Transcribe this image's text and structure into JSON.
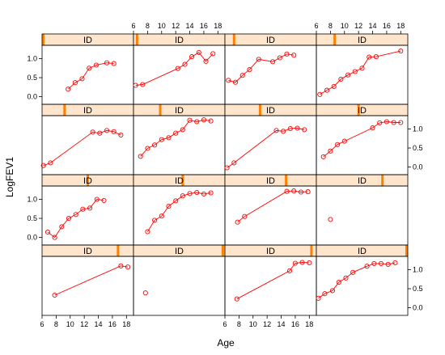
{
  "chart_data": {
    "type": "line",
    "xlabel": "Age",
    "ylabel": "LogFEV1",
    "strip_label": "ID",
    "xlim": [
      6,
      19
    ],
    "ylim": [
      -0.2,
      1.35
    ],
    "xticks": [
      6,
      8,
      10,
      12,
      14,
      16,
      18
    ],
    "yticks": [
      0.0,
      0.5,
      1.0
    ],
    "ytick_labels": [
      "0.0",
      "0.5",
      "1.0"
    ],
    "colors": {
      "line": "#ff0000",
      "strip_bg": "#ffe5cc",
      "strip_marker": "#ff8000",
      "frame": "#000000"
    },
    "layout": {
      "columns": 4,
      "rows": 4,
      "order": "bottom-to-top"
    },
    "panels": [
      {
        "id_marker": 16.8,
        "points": [
          [
            7.8,
            0.33
          ],
          [
            17.2,
            1.1
          ],
          [
            18.2,
            1.07
          ]
        ]
      },
      {
        "id_marker": 18.7,
        "points": [
          [
            7.7,
            0.39
          ]
        ]
      },
      {
        "id_marker": 18.3,
        "points": [
          [
            7.7,
            0.23
          ],
          [
            15.2,
            0.97
          ],
          [
            16.0,
            1.17
          ],
          [
            17.0,
            1.19
          ],
          [
            18.0,
            1.18
          ]
        ]
      },
      {
        "id_marker": 18.9,
        "points": [
          [
            6.3,
            0.25
          ],
          [
            7.2,
            0.37
          ],
          [
            8.3,
            0.45
          ],
          [
            9.2,
            0.67
          ],
          [
            10.2,
            0.78
          ],
          [
            11.2,
            0.93
          ],
          [
            13.2,
            1.09
          ],
          [
            14.2,
            1.16
          ],
          [
            15.2,
            1.16
          ],
          [
            16.2,
            1.14
          ],
          [
            17.2,
            1.18
          ]
        ]
      },
      {
        "id_marker": 12.5,
        "points": [
          [
            6.8,
            0.14
          ],
          [
            7.8,
            0.0
          ],
          [
            8.8,
            0.28
          ],
          [
            9.8,
            0.5
          ],
          [
            10.8,
            0.6
          ],
          [
            11.8,
            0.74
          ],
          [
            12.8,
            0.77
          ],
          [
            13.8,
            1.0
          ],
          [
            14.8,
            0.97
          ]
        ]
      },
      {
        "id_marker": 13.0,
        "points": [
          [
            8.0,
            0.15
          ],
          [
            9.0,
            0.45
          ],
          [
            10.0,
            0.56
          ],
          [
            11.0,
            0.82
          ],
          [
            12.0,
            0.96
          ],
          [
            13.0,
            1.09
          ],
          [
            14.0,
            1.15
          ],
          [
            15.0,
            1.18
          ],
          [
            16.0,
            1.14
          ],
          [
            17.0,
            1.17
          ]
        ]
      },
      {
        "id_marker": 14.7,
        "points": [
          [
            7.8,
            0.4
          ],
          [
            8.8,
            0.55
          ],
          [
            14.8,
            1.21
          ],
          [
            15.8,
            1.22
          ],
          [
            16.8,
            1.19
          ],
          [
            17.8,
            1.2
          ]
        ]
      },
      {
        "id_marker": 15.4,
        "points": [
          [
            8.0,
            0.47
          ]
        ]
      },
      {
        "id_marker": 9.2,
        "points": [
          [
            6.2,
            0.04
          ],
          [
            7.2,
            0.11
          ],
          [
            13.2,
            0.92
          ],
          [
            14.2,
            0.89
          ],
          [
            15.2,
            0.96
          ],
          [
            16.2,
            0.93
          ],
          [
            17.2,
            0.84
          ]
        ]
      },
      {
        "id_marker": 9.8,
        "points": [
          [
            7.0,
            0.28
          ],
          [
            8.0,
            0.49
          ],
          [
            9.0,
            0.58
          ],
          [
            10.0,
            0.72
          ],
          [
            11.0,
            0.77
          ],
          [
            12.0,
            0.89
          ],
          [
            13.0,
            0.98
          ],
          [
            14.0,
            1.23
          ],
          [
            15.0,
            1.19
          ],
          [
            16.0,
            1.24
          ],
          [
            17.0,
            1.21
          ]
        ]
      },
      {
        "id_marker": 11.0,
        "points": [
          [
            6.3,
            -0.02
          ],
          [
            7.3,
            0.11
          ],
          [
            13.3,
            0.96
          ],
          [
            14.3,
            0.94
          ],
          [
            15.3,
            1.01
          ],
          [
            16.3,
            1.02
          ],
          [
            17.3,
            0.98
          ]
        ]
      },
      {
        "id_marker": 12.0,
        "points": [
          [
            7.0,
            0.27
          ],
          [
            8.0,
            0.42
          ],
          [
            9.0,
            0.59
          ],
          [
            10.0,
            0.68
          ],
          [
            14.0,
            1.03
          ],
          [
            15.0,
            1.16
          ],
          [
            16.0,
            1.19
          ],
          [
            17.0,
            1.17
          ],
          [
            18.0,
            1.17
          ]
        ]
      },
      {
        "id_marker": 6.1,
        "points": [
          [
            9.7,
            0.2
          ],
          [
            10.7,
            0.37
          ],
          [
            11.7,
            0.47
          ],
          [
            12.7,
            0.75
          ],
          [
            13.7,
            0.83
          ],
          [
            15.2,
            0.89
          ],
          [
            16.2,
            0.87
          ]
        ]
      },
      {
        "id_marker": 6.5,
        "points": [
          [
            6.3,
            0.3
          ],
          [
            7.3,
            0.32
          ],
          [
            12.3,
            0.74
          ],
          [
            13.3,
            0.85
          ],
          [
            14.3,
            1.05
          ],
          [
            15.3,
            1.16
          ],
          [
            16.3,
            0.93
          ],
          [
            17.3,
            1.13
          ]
        ]
      },
      {
        "id_marker": 7.3,
        "points": [
          [
            6.5,
            0.43
          ],
          [
            7.5,
            0.38
          ],
          [
            8.5,
            0.56
          ],
          [
            9.5,
            0.71
          ],
          [
            10.8,
            0.98
          ],
          [
            12.8,
            0.92
          ],
          [
            13.8,
            1.02
          ],
          [
            14.8,
            1.12
          ],
          [
            15.8,
            1.09
          ]
        ]
      },
      {
        "id_marker": 8.6,
        "points": [
          [
            6.5,
            0.06
          ],
          [
            7.5,
            0.17
          ],
          [
            8.5,
            0.27
          ],
          [
            9.5,
            0.46
          ],
          [
            10.5,
            0.57
          ],
          [
            11.5,
            0.66
          ],
          [
            12.5,
            0.75
          ],
          [
            13.5,
            1.04
          ],
          [
            14.5,
            1.05
          ],
          [
            18.0,
            1.2
          ]
        ]
      }
    ]
  }
}
